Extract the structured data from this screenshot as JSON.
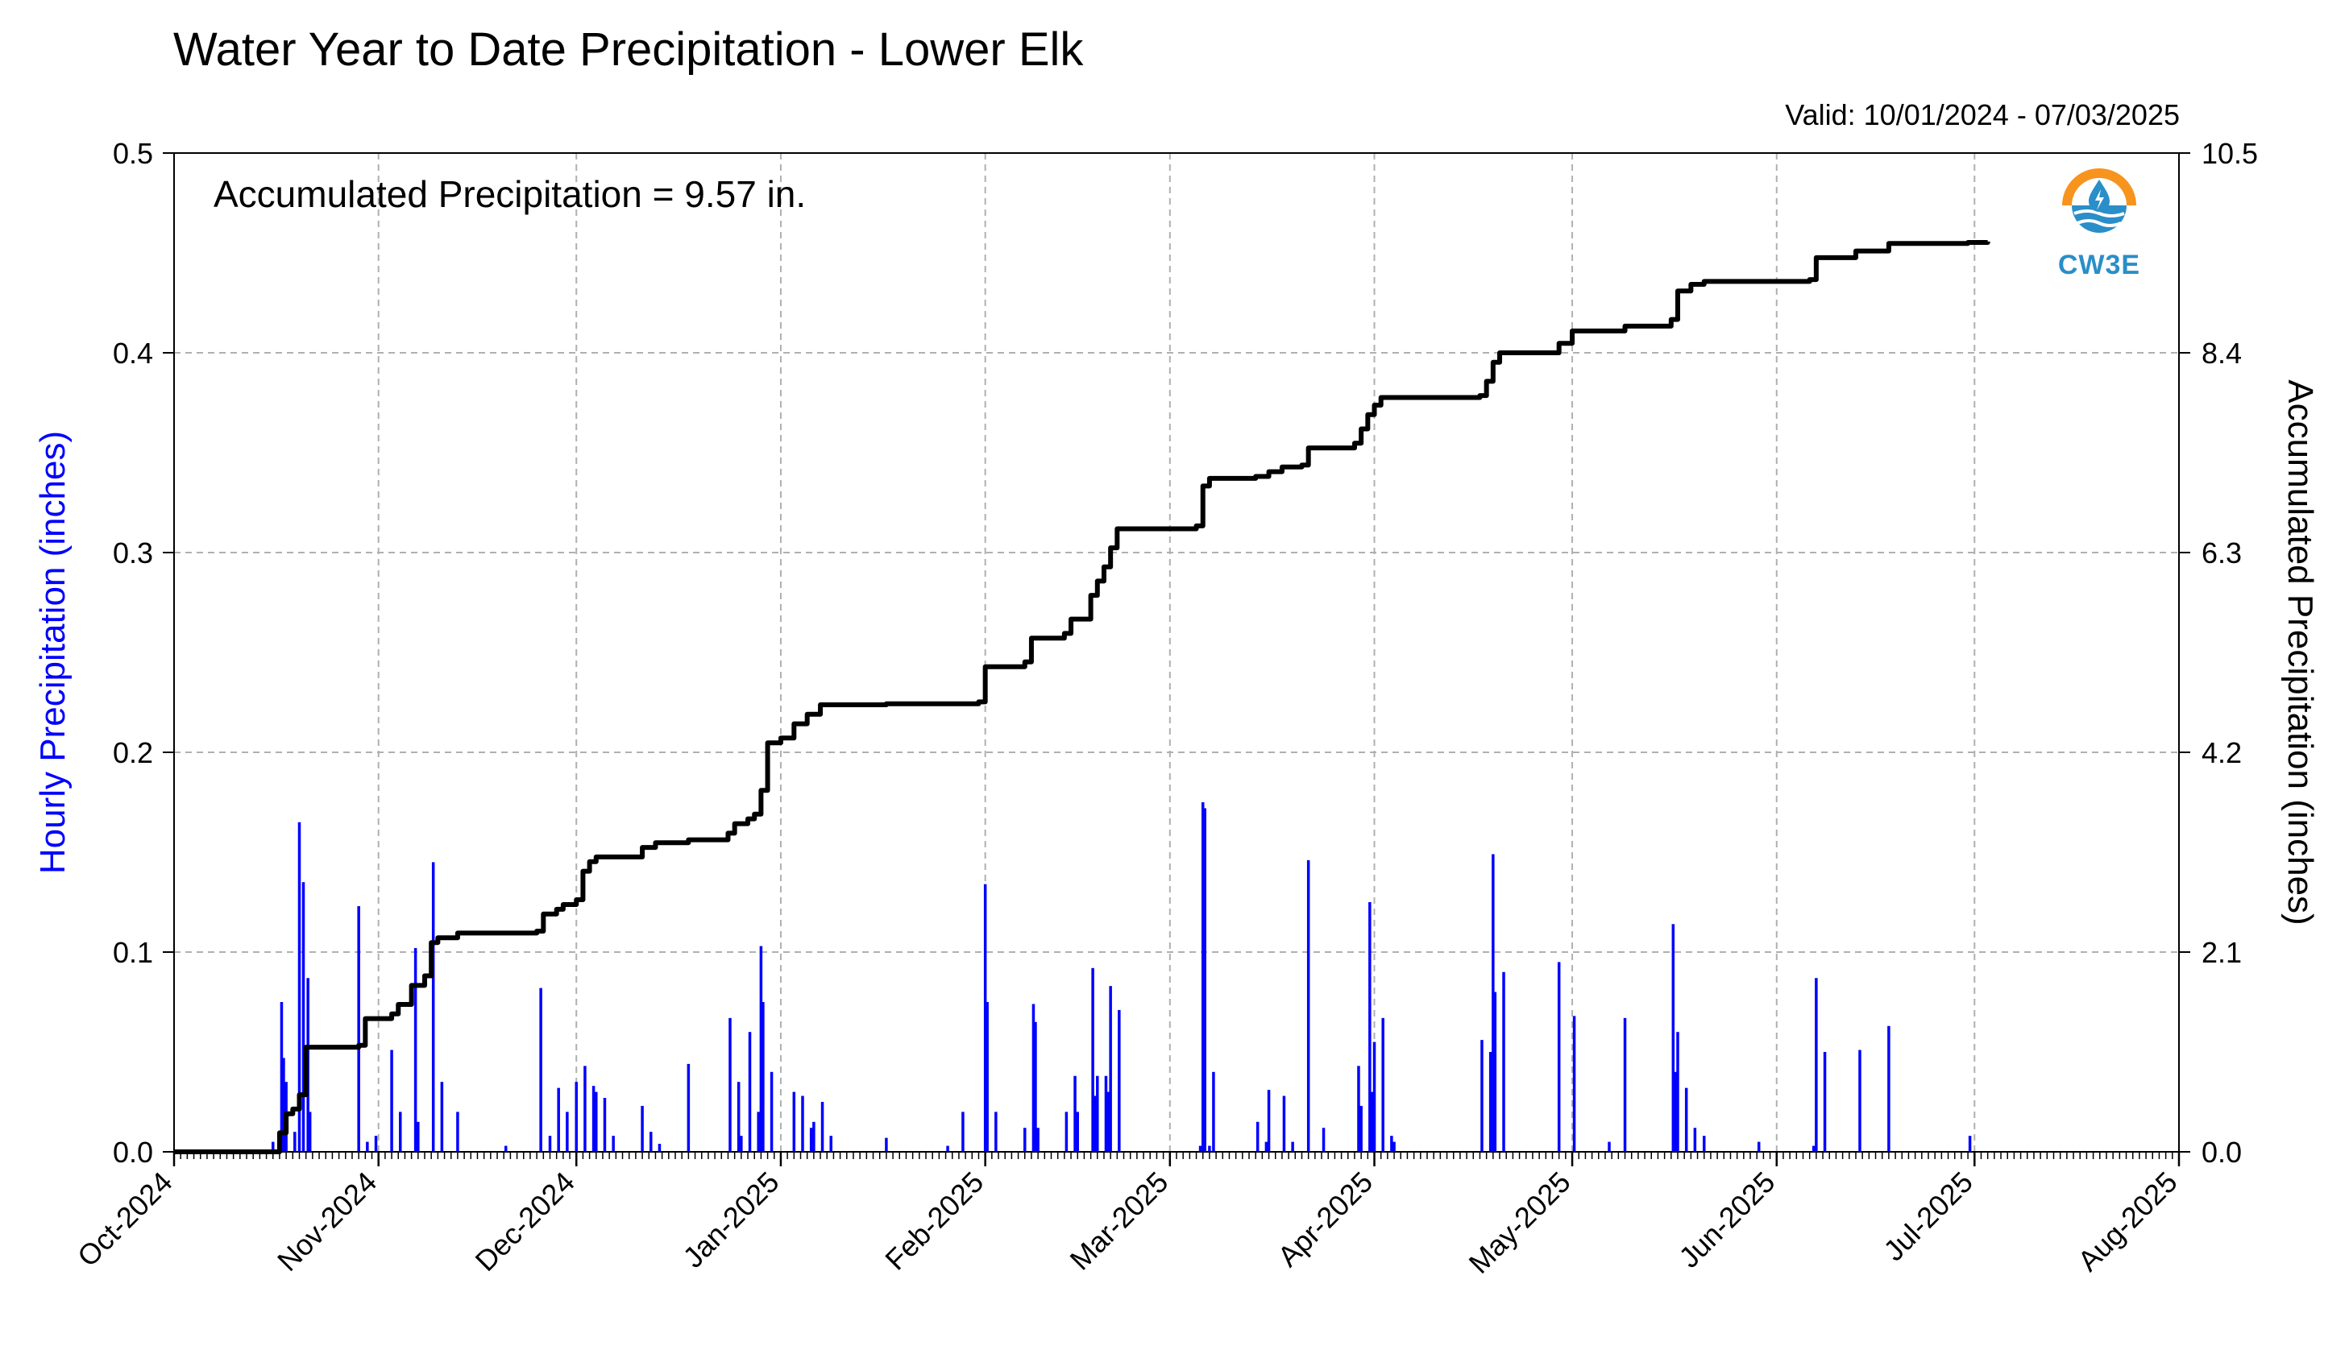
{
  "title": "Water Year to Date Precipitation - Lower Elk",
  "valid_label": "Valid: 10/01/2024 - 07/03/2025",
  "annotation": "Accumulated Precipitation = 9.57 in.",
  "logo_text": "CW3E",
  "colors": {
    "hourly": "#0000ff",
    "accumulated": "#000000",
    "grid": "#b0b0b0",
    "logo_orange": "#f7941d",
    "logo_blue": "#2a8ec8"
  },
  "chart_data": {
    "type": "bar",
    "title": "Water Year to Date Precipitation - Lower Elk",
    "grid": true,
    "x_axis": {
      "tick_labels": [
        "Oct-2024",
        "Nov-2024",
        "Dec-2024",
        "Jan-2025",
        "Feb-2025",
        "Mar-2025",
        "Apr-2025",
        "May-2025",
        "Jun-2025",
        "Jul-2025",
        "Aug-2025"
      ],
      "range": [
        "2024-10-01",
        "2025-08-01"
      ]
    },
    "y_left": {
      "label": "Hourly Precipitation (inches)",
      "range": [
        0,
        0.5
      ],
      "ticks": [
        "0.0",
        "0.1",
        "0.2",
        "0.3",
        "0.4",
        "0.5"
      ]
    },
    "y_right": {
      "label": "Accumulated Precipitation (inches)",
      "range": [
        0,
        10.5
      ],
      "ticks": [
        "0.0",
        "2.1",
        "4.2",
        "6.3",
        "8.4",
        "10.5"
      ]
    },
    "series": [
      {
        "name": "Hourly Precipitation (inches)",
        "type": "bar",
        "points": [
          [
            "2024-10-16",
            0.005
          ],
          [
            "2024-10-17",
            0.075
          ],
          [
            "2024-10-17",
            0.047
          ],
          [
            "2024-10-18",
            0.035
          ],
          [
            "2024-10-19",
            0.01
          ],
          [
            "2024-10-20",
            0.135
          ],
          [
            "2024-10-20",
            0.165
          ],
          [
            "2024-10-21",
            0.087
          ],
          [
            "2024-10-21",
            0.02
          ],
          [
            "2024-10-29",
            0.123
          ],
          [
            "2024-10-30",
            0.005
          ],
          [
            "2024-10-31",
            0.008
          ],
          [
            "2024-11-03",
            0.051
          ],
          [
            "2024-11-04",
            0.02
          ],
          [
            "2024-11-06",
            0.102
          ],
          [
            "2024-11-07",
            0.015
          ],
          [
            "2024-11-09",
            0.145
          ],
          [
            "2024-11-10",
            0.035
          ],
          [
            "2024-11-13",
            0.02
          ],
          [
            "2024-11-20",
            0.003
          ],
          [
            "2024-11-25",
            0.082
          ],
          [
            "2024-11-27",
            0.008
          ],
          [
            "2024-11-28",
            0.032
          ],
          [
            "2024-11-29",
            0.02
          ],
          [
            "2024-12-01",
            0.035
          ],
          [
            "2024-12-02",
            0.043
          ],
          [
            "2024-12-03",
            0.033
          ],
          [
            "2024-12-04",
            0.03
          ],
          [
            "2024-12-05",
            0.027
          ],
          [
            "2024-12-06",
            0.008
          ],
          [
            "2024-12-11",
            0.023
          ],
          [
            "2024-12-12",
            0.01
          ],
          [
            "2024-12-13",
            0.004
          ],
          [
            "2024-12-18",
            0.044
          ],
          [
            "2024-12-24",
            0.067
          ],
          [
            "2024-12-25",
            0.035
          ],
          [
            "2024-12-26",
            0.008
          ],
          [
            "2024-12-27",
            0.06
          ],
          [
            "2024-12-28",
            0.02
          ],
          [
            "2024-12-29",
            0.103
          ],
          [
            "2024-12-29",
            0.075
          ],
          [
            "2024-12-30",
            0.04
          ],
          [
            "2025-01-03",
            0.03
          ],
          [
            "2025-01-04",
            0.028
          ],
          [
            "2025-01-05",
            0.012
          ],
          [
            "2025-01-06",
            0.015
          ],
          [
            "2025-01-07",
            0.025
          ],
          [
            "2025-01-08",
            0.008
          ],
          [
            "2025-01-17",
            0.007
          ],
          [
            "2025-01-26",
            0.003
          ],
          [
            "2025-01-28",
            0.02
          ],
          [
            "2025-02-01",
            0.134
          ],
          [
            "2025-02-01",
            0.075
          ],
          [
            "2025-02-02",
            0.02
          ],
          [
            "2025-02-07",
            0.012
          ],
          [
            "2025-02-08",
            0.074
          ],
          [
            "2025-02-08",
            0.065
          ],
          [
            "2025-02-09",
            0.012
          ],
          [
            "2025-02-13",
            0.02
          ],
          [
            "2025-02-14",
            0.038
          ],
          [
            "2025-02-15",
            0.02
          ],
          [
            "2025-02-17",
            0.092
          ],
          [
            "2025-02-17",
            0.028
          ],
          [
            "2025-02-18",
            0.038
          ],
          [
            "2025-02-19",
            0.038
          ],
          [
            "2025-02-19",
            0.03
          ],
          [
            "2025-02-20",
            0.083
          ],
          [
            "2025-02-21",
            0.071
          ],
          [
            "2025-03-05",
            0.003
          ],
          [
            "2025-03-06",
            0.175
          ],
          [
            "2025-03-06",
            0.172
          ],
          [
            "2025-03-07",
            0.04
          ],
          [
            "2025-03-07",
            0.003
          ],
          [
            "2025-03-14",
            0.015
          ],
          [
            "2025-03-15",
            0.005
          ],
          [
            "2025-03-16",
            0.031
          ],
          [
            "2025-03-18",
            0.028
          ],
          [
            "2025-03-19",
            0.005
          ],
          [
            "2025-03-22",
            0.146
          ],
          [
            "2025-03-24",
            0.012
          ],
          [
            "2025-03-29",
            0.043
          ],
          [
            "2025-03-30",
            0.023
          ],
          [
            "2025-03-31",
            0.125
          ],
          [
            "2025-03-31",
            0.03
          ],
          [
            "2025-04-01",
            0.055
          ],
          [
            "2025-04-02",
            0.067
          ],
          [
            "2025-04-03",
            0.008
          ],
          [
            "2025-04-04",
            0.005
          ],
          [
            "2025-04-17",
            0.056
          ],
          [
            "2025-04-18",
            0.05
          ],
          [
            "2025-04-19",
            0.149
          ],
          [
            "2025-04-19",
            0.08
          ],
          [
            "2025-04-20",
            0.09
          ],
          [
            "2025-04-29",
            0.095
          ],
          [
            "2025-05-01",
            0.068
          ],
          [
            "2025-05-06",
            0.005
          ],
          [
            "2025-05-09",
            0.067
          ],
          [
            "2025-05-16",
            0.114
          ],
          [
            "2025-05-16",
            0.04
          ],
          [
            "2025-05-17",
            0.06
          ],
          [
            "2025-05-18",
            0.032
          ],
          [
            "2025-05-19",
            0.012
          ],
          [
            "2025-05-21",
            0.008
          ],
          [
            "2025-05-29",
            0.005
          ],
          [
            "2025-06-06",
            0.003
          ],
          [
            "2025-06-07",
            0.087
          ],
          [
            "2025-06-08",
            0.05
          ],
          [
            "2025-06-13",
            0.051
          ],
          [
            "2025-06-18",
            0.063
          ],
          [
            "2025-06-30",
            0.008
          ]
        ]
      },
      {
        "name": "Accumulated Precipitation (inches)",
        "type": "line",
        "points": [
          [
            "2024-10-01",
            0.0
          ],
          [
            "2024-10-16",
            0.0
          ],
          [
            "2024-10-17",
            0.2
          ],
          [
            "2024-10-18",
            0.4
          ],
          [
            "2024-10-19",
            0.45
          ],
          [
            "2024-10-20",
            0.6
          ],
          [
            "2024-10-21",
            1.1
          ],
          [
            "2024-10-29",
            1.12
          ],
          [
            "2024-10-30",
            1.4
          ],
          [
            "2024-11-03",
            1.45
          ],
          [
            "2024-11-04",
            1.55
          ],
          [
            "2024-11-06",
            1.75
          ],
          [
            "2024-11-08",
            1.85
          ],
          [
            "2024-11-09",
            2.2
          ],
          [
            "2024-11-10",
            2.25
          ],
          [
            "2024-11-13",
            2.3
          ],
          [
            "2024-11-25",
            2.32
          ],
          [
            "2024-11-26",
            2.5
          ],
          [
            "2024-11-28",
            2.55
          ],
          [
            "2024-11-29",
            2.6
          ],
          [
            "2024-12-01",
            2.65
          ],
          [
            "2024-12-02",
            2.95
          ],
          [
            "2024-12-03",
            3.05
          ],
          [
            "2024-12-04",
            3.1
          ],
          [
            "2024-12-11",
            3.2
          ],
          [
            "2024-12-13",
            3.25
          ],
          [
            "2024-12-18",
            3.28
          ],
          [
            "2024-12-24",
            3.35
          ],
          [
            "2024-12-25",
            3.45
          ],
          [
            "2024-12-27",
            3.5
          ],
          [
            "2024-12-28",
            3.55
          ],
          [
            "2024-12-29",
            3.8
          ],
          [
            "2024-12-30",
            4.3
          ],
          [
            "2025-01-01",
            4.35
          ],
          [
            "2025-01-03",
            4.5
          ],
          [
            "2025-01-05",
            4.6
          ],
          [
            "2025-01-07",
            4.7
          ],
          [
            "2025-01-17",
            4.71
          ],
          [
            "2025-01-31",
            4.73
          ],
          [
            "2025-02-01",
            5.1
          ],
          [
            "2025-02-07",
            5.15
          ],
          [
            "2025-02-08",
            5.4
          ],
          [
            "2025-02-13",
            5.45
          ],
          [
            "2025-02-14",
            5.6
          ],
          [
            "2025-02-17",
            5.85
          ],
          [
            "2025-02-18",
            6.0
          ],
          [
            "2025-02-19",
            6.15
          ],
          [
            "2025-02-20",
            6.35
          ],
          [
            "2025-02-21",
            6.55
          ],
          [
            "2025-03-05",
            6.58
          ],
          [
            "2025-03-06",
            7.0
          ],
          [
            "2025-03-07",
            7.08
          ],
          [
            "2025-03-14",
            7.1
          ],
          [
            "2025-03-16",
            7.15
          ],
          [
            "2025-03-18",
            7.2
          ],
          [
            "2025-03-21",
            7.22
          ],
          [
            "2025-03-22",
            7.4
          ],
          [
            "2025-03-29",
            7.45
          ],
          [
            "2025-03-30",
            7.6
          ],
          [
            "2025-03-31",
            7.75
          ],
          [
            "2025-04-01",
            7.85
          ],
          [
            "2025-04-02",
            7.93
          ],
          [
            "2025-04-17",
            7.95
          ],
          [
            "2025-04-18",
            8.1
          ],
          [
            "2025-04-19",
            8.3
          ],
          [
            "2025-04-20",
            8.4
          ],
          [
            "2025-04-29",
            8.5
          ],
          [
            "2025-05-01",
            8.63
          ],
          [
            "2025-05-09",
            8.68
          ],
          [
            "2025-05-16",
            8.75
          ],
          [
            "2025-05-17",
            9.05
          ],
          [
            "2025-05-19",
            9.12
          ],
          [
            "2025-05-21",
            9.15
          ],
          [
            "2025-06-06",
            9.17
          ],
          [
            "2025-06-07",
            9.4
          ],
          [
            "2025-06-13",
            9.47
          ],
          [
            "2025-06-18",
            9.55
          ],
          [
            "2025-06-30",
            9.56
          ],
          [
            "2025-07-03",
            9.57
          ]
        ]
      }
    ]
  }
}
